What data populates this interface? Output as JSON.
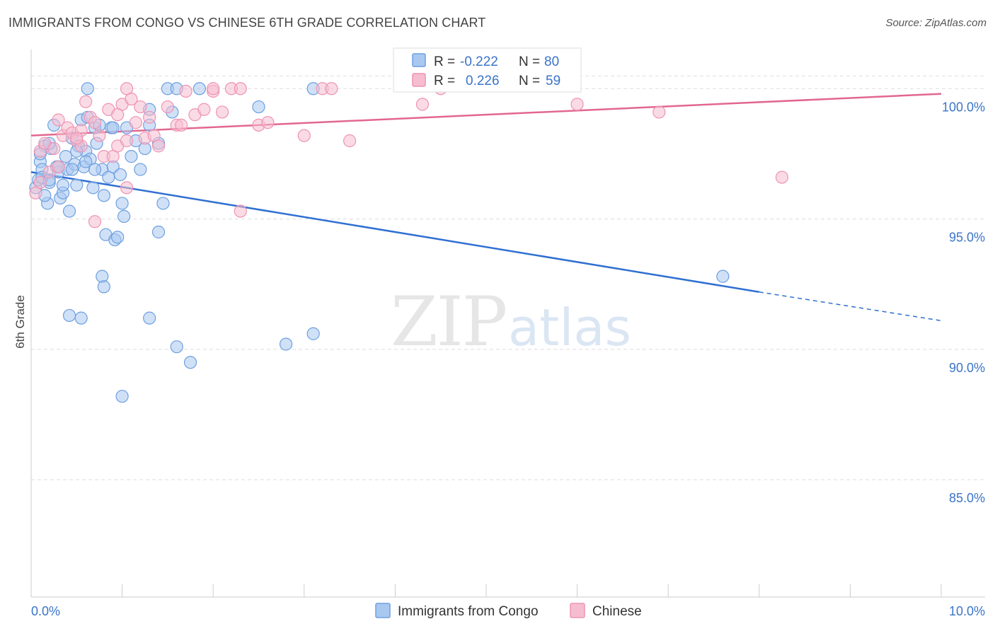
{
  "title": "IMMIGRANTS FROM CONGO VS CHINESE 6TH GRADE CORRELATION CHART",
  "source": "Source: ZipAtlas.com",
  "watermark": {
    "part1": "ZIP",
    "part2": "atlas"
  },
  "colors": {
    "congo_fill": "#a9c8f0",
    "congo_stroke": "#6d9fe0",
    "congo_line": "#2f6fd1",
    "chinese_fill": "#f6bdd0",
    "chinese_stroke": "#ee93b3",
    "chinese_line": "#e2678f",
    "grid": "#dddddd",
    "axis_text": "#3a74c9"
  },
  "legend": {
    "congo_label": "Immigrants from Congo",
    "chinese_label": "Chinese"
  },
  "stats": {
    "congo": {
      "r_label": "R =",
      "r_value": "-0.222",
      "n_label": "N =",
      "n_value": "80"
    },
    "chinese": {
      "r_label": "R =",
      "r_value": "0.226",
      "n_label": "N =",
      "n_value": "59"
    }
  },
  "chart_data": {
    "type": "scatter",
    "title": "IMMIGRANTS FROM CONGO VS CHINESE 6TH GRADE CORRELATION CHART",
    "xlabel": "",
    "ylabel": "6th Grade",
    "xlim": [
      0,
      10
    ],
    "ylim": [
      80.5,
      101.5
    ],
    "x_tick_labels": [
      "0.0%",
      "10.0%"
    ],
    "y_ticks": [
      85,
      90,
      95,
      100
    ],
    "y_tick_labels": [
      "85.0%",
      "90.0%",
      "95.0%",
      "100.0%"
    ],
    "grid": true,
    "legend_position": "bottom-center",
    "series": [
      {
        "name": "Immigrants from Congo",
        "color": "blue",
        "r": -0.222,
        "n": 80,
        "trend": {
          "x0": 0.0,
          "y0": 96.8,
          "x1": 8.0,
          "y1": 92.2,
          "dashed_to_x": 10.0,
          "dashed_to_y": 91.1
        },
        "points": [
          [
            0.05,
            96.2
          ],
          [
            0.08,
            96.5
          ],
          [
            0.1,
            97.2
          ],
          [
            0.12,
            96.9
          ],
          [
            0.15,
            97.8
          ],
          [
            0.18,
            95.6
          ],
          [
            0.2,
            96.4
          ],
          [
            0.22,
            97.7
          ],
          [
            0.25,
            98.6
          ],
          [
            0.28,
            97.0
          ],
          [
            0.3,
            96.8
          ],
          [
            0.32,
            95.8
          ],
          [
            0.35,
            96.0
          ],
          [
            0.38,
            97.4
          ],
          [
            0.4,
            96.9
          ],
          [
            0.42,
            95.3
          ],
          [
            0.45,
            98.1
          ],
          [
            0.48,
            97.1
          ],
          [
            0.5,
            96.3
          ],
          [
            0.52,
            97.8
          ],
          [
            0.55,
            98.8
          ],
          [
            0.58,
            97.0
          ],
          [
            0.6,
            97.6
          ],
          [
            0.62,
            98.9
          ],
          [
            0.65,
            97.3
          ],
          [
            0.68,
            96.2
          ],
          [
            0.7,
            98.5
          ],
          [
            0.72,
            97.9
          ],
          [
            0.75,
            98.6
          ],
          [
            0.78,
            96.9
          ],
          [
            0.8,
            95.9
          ],
          [
            0.82,
            94.4
          ],
          [
            0.85,
            96.6
          ],
          [
            0.88,
            98.5
          ],
          [
            0.9,
            97.0
          ],
          [
            0.92,
            94.2
          ],
          [
            0.95,
            94.3
          ],
          [
            0.98,
            96.7
          ],
          [
            1.0,
            95.6
          ],
          [
            1.02,
            95.1
          ],
          [
            1.05,
            98.5
          ],
          [
            1.1,
            97.4
          ],
          [
            1.15,
            98.0
          ],
          [
            1.2,
            96.9
          ],
          [
            1.25,
            97.7
          ],
          [
            1.3,
            99.2
          ],
          [
            1.4,
            94.5
          ],
          [
            1.45,
            95.6
          ],
          [
            1.5,
            100.0
          ],
          [
            1.6,
            100.0
          ],
          [
            0.62,
            100.0
          ],
          [
            1.85,
            100.0
          ],
          [
            1.0,
            88.2
          ],
          [
            1.6,
            90.1
          ],
          [
            1.75,
            89.5
          ],
          [
            2.8,
            90.2
          ],
          [
            3.1,
            90.6
          ],
          [
            0.42,
            91.3
          ],
          [
            0.55,
            91.2
          ],
          [
            1.3,
            91.2
          ],
          [
            0.78,
            92.8
          ],
          [
            0.8,
            92.4
          ],
          [
            2.5,
            99.3
          ],
          [
            3.1,
            100.0
          ],
          [
            0.15,
            95.9
          ],
          [
            0.3,
            97.0
          ],
          [
            0.45,
            96.9
          ],
          [
            0.6,
            97.2
          ],
          [
            0.12,
            96.6
          ],
          [
            0.2,
            97.9
          ],
          [
            0.35,
            96.3
          ],
          [
            0.5,
            97.6
          ],
          [
            0.7,
            96.9
          ],
          [
            0.9,
            98.5
          ],
          [
            1.3,
            98.6
          ],
          [
            1.4,
            97.9
          ],
          [
            1.55,
            99.1
          ],
          [
            0.2,
            96.5
          ],
          [
            0.1,
            97.5
          ],
          [
            7.6,
            92.8
          ]
        ]
      },
      {
        "name": "Chinese",
        "color": "pink",
        "r": 0.226,
        "n": 59,
        "trend": {
          "x0": 0.0,
          "y0": 98.2,
          "x1": 10.0,
          "y1": 99.8
        },
        "points": [
          [
            0.05,
            96.0
          ],
          [
            0.1,
            97.6
          ],
          [
            0.15,
            97.9
          ],
          [
            0.2,
            96.8
          ],
          [
            0.25,
            97.7
          ],
          [
            0.3,
            98.8
          ],
          [
            0.35,
            98.2
          ],
          [
            0.4,
            98.5
          ],
          [
            0.45,
            98.3
          ],
          [
            0.5,
            98.0
          ],
          [
            0.55,
            97.8
          ],
          [
            0.6,
            99.5
          ],
          [
            0.65,
            98.9
          ],
          [
            0.7,
            98.7
          ],
          [
            0.75,
            98.2
          ],
          [
            0.8,
            97.4
          ],
          [
            0.85,
            99.2
          ],
          [
            0.9,
            97.4
          ],
          [
            0.95,
            97.8
          ],
          [
            1.0,
            99.4
          ],
          [
            1.05,
            98.0
          ],
          [
            1.1,
            99.6
          ],
          [
            1.15,
            98.7
          ],
          [
            1.2,
            99.3
          ],
          [
            1.25,
            98.1
          ],
          [
            1.3,
            98.9
          ],
          [
            1.35,
            98.2
          ],
          [
            1.4,
            97.8
          ],
          [
            1.5,
            99.3
          ],
          [
            1.6,
            98.6
          ],
          [
            1.7,
            99.9
          ],
          [
            1.8,
            99.0
          ],
          [
            1.9,
            99.2
          ],
          [
            2.0,
            99.9
          ],
          [
            2.1,
            99.1
          ],
          [
            2.2,
            100.0
          ],
          [
            2.3,
            100.0
          ],
          [
            2.5,
            98.6
          ],
          [
            2.6,
            98.7
          ],
          [
            3.0,
            98.2
          ],
          [
            3.2,
            100.0
          ],
          [
            3.5,
            98.0
          ],
          [
            0.7,
            94.9
          ],
          [
            1.05,
            96.2
          ],
          [
            2.3,
            95.3
          ],
          [
            4.3,
            99.4
          ],
          [
            4.5,
            100.0
          ],
          [
            6.0,
            99.4
          ],
          [
            6.9,
            99.1
          ],
          [
            8.25,
            96.6
          ],
          [
            0.1,
            96.4
          ],
          [
            0.3,
            97.0
          ],
          [
            0.55,
            98.4
          ],
          [
            0.95,
            99.0
          ],
          [
            1.65,
            98.6
          ],
          [
            2.0,
            100.0
          ],
          [
            3.3,
            100.0
          ],
          [
            1.05,
            100.0
          ],
          [
            0.5,
            98.1
          ]
        ]
      }
    ]
  }
}
